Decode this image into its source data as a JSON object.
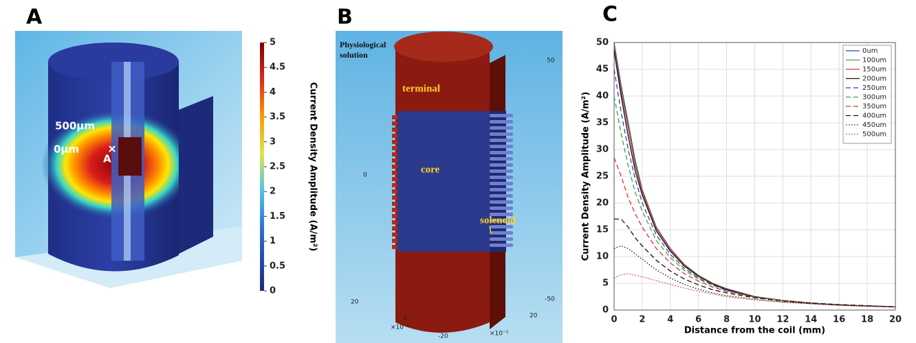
{
  "panels": [
    {
      "label": "A",
      "annotations": [
        "500µm",
        "0µm",
        "A"
      ],
      "colorbar": {
        "title": "Current Density Amplitude (A/m²)",
        "lim": [
          0,
          5
        ],
        "ticks": [
          0,
          0.5,
          1,
          1.5,
          2,
          2.5,
          3,
          3.5,
          4,
          4.5,
          5
        ]
      }
    },
    {
      "label": "B",
      "annotations": [
        "Physiological solution",
        "terminal",
        "core",
        "solenoid"
      ],
      "axis_labels": [
        "50",
        "0",
        "-50",
        "20",
        "0",
        "-20",
        "20",
        "0",
        "×10⁻⁵",
        "×10⁻⁵"
      ]
    }
  ],
  "chart_data": {
    "type": "line",
    "panel_label": "C",
    "x_label": "Distance from the coil (mm)",
    "y_label": "Current Density Amplitude (A/m²)",
    "x": [
      0,
      0.5,
      1,
      1.5,
      2,
      3,
      4,
      5,
      6,
      7,
      8,
      10,
      12,
      14,
      16,
      18,
      20
    ],
    "xlim": [
      0,
      20
    ],
    "xticks": [
      0,
      2,
      4,
      6,
      8,
      10,
      12,
      14,
      16,
      18,
      20
    ],
    "ylim": [
      0,
      50
    ],
    "yticks": [
      0,
      5,
      10,
      15,
      20,
      25,
      30,
      35,
      40,
      45,
      50
    ],
    "grid": true,
    "legend": "upper right",
    "series": [
      {
        "name": "0um",
        "color": "#2f3fbf",
        "dash": "solid",
        "values": [
          50,
          42,
          35,
          28,
          22.5,
          15.5,
          11.5,
          8.5,
          6.5,
          5,
          4,
          2.5,
          1.8,
          1.3,
          1,
          0.8,
          0.6
        ]
      },
      {
        "name": "100um",
        "color": "#3aa63a",
        "dash": "solid",
        "values": [
          49.5,
          41.5,
          34.5,
          27.5,
          22.3,
          15.4,
          11.4,
          8.5,
          6.5,
          5,
          3.9,
          2.5,
          1.8,
          1.3,
          1,
          0.8,
          0.6
        ]
      },
      {
        "name": "150um",
        "color": "#e03030",
        "dash": "solid",
        "values": [
          49,
          41,
          34,
          27,
          22,
          15.2,
          11.3,
          8.4,
          6.4,
          5,
          3.9,
          2.5,
          1.8,
          1.3,
          1,
          0.8,
          0.6
        ]
      },
      {
        "name": "200um",
        "color": "#111111",
        "dash": "solid",
        "values": [
          48.5,
          40,
          32.5,
          26,
          21.5,
          14.8,
          11,
          8.2,
          6.3,
          4.9,
          3.8,
          2.5,
          1.8,
          1.3,
          1,
          0.8,
          0.6
        ]
      },
      {
        "name": "250um",
        "color": "#2f3fbf",
        "dash": "dashed",
        "values": [
          45,
          37,
          30,
          24.5,
          20,
          14,
          10.4,
          7.8,
          6,
          4.7,
          3.7,
          2.4,
          1.8,
          1.3,
          1,
          0.8,
          0.6
        ]
      },
      {
        "name": "300um",
        "color": "#3aa63a",
        "dash": "dashed",
        "values": [
          40,
          33,
          27,
          22,
          18.5,
          13,
          9.8,
          7.4,
          5.8,
          4.6,
          3.6,
          2.4,
          1.8,
          1.3,
          1,
          0.8,
          0.6
        ]
      },
      {
        "name": "350um",
        "color": "#e03030",
        "dash": "dashed",
        "values": [
          28.5,
          25,
          21,
          18,
          15.5,
          11.5,
          8.8,
          6.8,
          5.4,
          4.3,
          3.5,
          2.4,
          1.8,
          1.35,
          1,
          0.8,
          0.6
        ]
      },
      {
        "name": "400um",
        "color": "#111111",
        "dash": "dashed",
        "values": [
          17,
          17,
          15.5,
          13.5,
          12,
          9.3,
          7.3,
          5.8,
          4.7,
          3.8,
          3.2,
          2.3,
          1.7,
          1.3,
          1,
          0.8,
          0.6
        ]
      },
      {
        "name": "450um",
        "color": "#111111",
        "dash": "dotted",
        "values": [
          11.5,
          12,
          11.5,
          10.5,
          9.5,
          7.5,
          6,
          4.8,
          3.9,
          3.2,
          2.7,
          2,
          1.5,
          1.2,
          0.9,
          0.7,
          0.6
        ]
      },
      {
        "name": "500um",
        "color": "#e03030",
        "dash": "dotted",
        "values": [
          6,
          6.6,
          6.8,
          6.5,
          6.2,
          5.5,
          4.8,
          4.1,
          3.5,
          3,
          2.5,
          1.9,
          1.5,
          1.15,
          0.9,
          0.7,
          0.55
        ]
      }
    ]
  }
}
